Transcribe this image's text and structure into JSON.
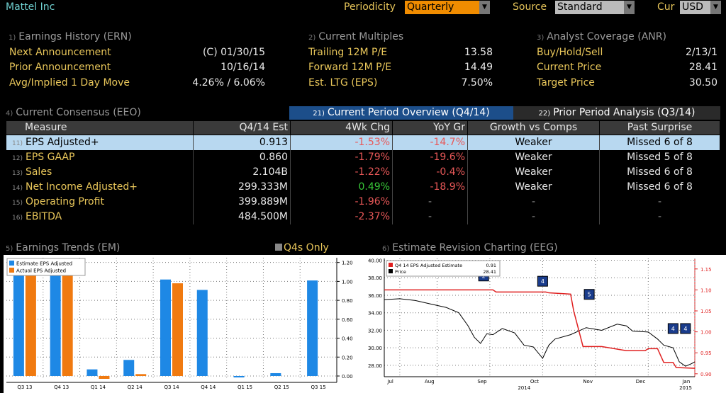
{
  "header": {
    "company": "Mattel Inc",
    "periodicity_label": "Periodicity",
    "periodicity_value": "Quarterly",
    "source_label": "Source",
    "source_value": "Standard",
    "cur_label": "Cur",
    "cur_value": "USD"
  },
  "earnings_history": {
    "num": "1)",
    "title": "Earnings History (ERN)",
    "rows": [
      {
        "label": "Next Announcement",
        "value": "(C)  01/30/15"
      },
      {
        "label": "Prior Announcement",
        "value": "10/16/14"
      },
      {
        "label": "Avg/Implied 1 Day Move",
        "value": "4.26% / 6.06%"
      }
    ]
  },
  "current_multiples": {
    "num": "2)",
    "title": "Current Multiples",
    "rows": [
      {
        "label": "Trailing 12M P/E",
        "value": "13.58"
      },
      {
        "label": "Forward 12M P/E",
        "value": "14.49"
      },
      {
        "label": "Est. LTG (EPS)",
        "value": "7.50%"
      }
    ]
  },
  "analyst_coverage": {
    "num": "3)",
    "title": "Analyst Coverage (ANR)",
    "rows": [
      {
        "label": "Buy/Hold/Sell",
        "value": "2/13/1"
      },
      {
        "label": "Current Price",
        "value": "28.41"
      },
      {
        "label": "Target Price",
        "value": "30.50"
      }
    ]
  },
  "consensus": {
    "num": "4)",
    "title": "Current Consensus (EEO)",
    "tab1_num": "21)",
    "tab1": "Current Period Overview (Q4/14)",
    "tab2_num": "22)",
    "tab2": "Prior Period Analysis (Q3/14)",
    "columns": [
      "Measure",
      "Q4/14 Est",
      "4Wk Chg",
      "YoY Gr",
      "Growth vs Comps",
      "Past Surprise"
    ],
    "rows": [
      {
        "num": "11)",
        "measure": "EPS Adjusted+",
        "est": "0.913",
        "chg": "-1.53%",
        "yoy": "-14.7%",
        "growth": "Weaker",
        "surprise": "Missed 6 of 8"
      },
      {
        "num": "12)",
        "measure": "EPS GAAP",
        "est": "0.860",
        "chg": "-1.79%",
        "yoy": "-19.6%",
        "growth": "Weaker",
        "surprise": "Missed 5 of 8"
      },
      {
        "num": "13)",
        "measure": "Sales",
        "est": "2.104B",
        "chg": "-1.22%",
        "yoy": "-0.4%",
        "growth": "Weaker",
        "surprise": "Missed 6 of 8"
      },
      {
        "num": "14)",
        "measure": "Net Income Adjusted+",
        "est": "299.333M",
        "chg": "0.49%",
        "yoy": "-18.9%",
        "growth": "Weaker",
        "surprise": "Missed 6 of 8"
      },
      {
        "num": "15)",
        "measure": "Operating Profit",
        "est": "399.889M",
        "chg": "-1.96%",
        "yoy": "-",
        "growth": "-",
        "surprise": "-"
      },
      {
        "num": "16)",
        "measure": "EBITDA",
        "est": "484.500M",
        "chg": "-2.37%",
        "yoy": "-",
        "growth": "-",
        "surprise": "-"
      }
    ]
  },
  "trends": {
    "num": "5)",
    "title": "Earnings Trends (EM)",
    "q4s_only": "Q4s Only"
  },
  "revision": {
    "num": "6)",
    "title": "Estimate Revision Charting (EEG)"
  },
  "colors": {
    "estimate": "#1e88e5",
    "actual": "#f07a10",
    "revision_line": "#e02020",
    "price_line": "#000000"
  },
  "chart_data": [
    {
      "type": "bar",
      "title": "Earnings Trends (EM)",
      "categories": [
        "Q3 13",
        "Q4 13",
        "Q1 14",
        "Q2 14",
        "Q3 14",
        "Q4 14",
        "Q1 15",
        "Q2 15",
        "Q3 15"
      ],
      "series": [
        {
          "name": "Estimate EPS Adjusted",
          "values": [
            1.07,
            1.07,
            0.07,
            0.17,
            1.02,
            0.91,
            -0.01,
            0.03,
            1.01
          ]
        },
        {
          "name": "Actual EPS Adjusted",
          "values": [
            1.07,
            1.07,
            -0.03,
            0.02,
            0.98,
            null,
            null,
            null,
            null
          ]
        }
      ],
      "ylim": [
        -0.03,
        1.25
      ],
      "yticks": [
        "1.20",
        "1.00",
        "0.80",
        "0.60",
        "0.40",
        "0.20",
        "0.00"
      ],
      "ytick_values": [
        1.2,
        1.0,
        0.8,
        0.6,
        0.4,
        0.2,
        0.0
      ]
    },
    {
      "type": "line",
      "title": "Estimate Revision Charting (EEG)",
      "x_labels": [
        "Jul",
        "Aug",
        "Sep",
        "Oct",
        "Nov",
        "Dec",
        "Jan"
      ],
      "x_sublabels": [
        "2014",
        "2015"
      ],
      "left_axis": {
        "ticks": [
          "40.00",
          "38.00",
          "36.00",
          "34.00",
          "32.00",
          "30.00",
          "28.00"
        ],
        "values": [
          40,
          38,
          36,
          34,
          32,
          30,
          28
        ],
        "ylim": [
          26.7,
          40.2
        ]
      },
      "right_axis": {
        "ticks": [
          "1.15",
          "1.10",
          "1.05",
          "1.00",
          "0.95",
          "0.90"
        ],
        "values": [
          1.15,
          1.1,
          1.05,
          1.0,
          0.95,
          0.9
        ],
        "ylim": [
          0.893,
          1.175
        ]
      },
      "legend": [
        {
          "name": "Q4 14 EPS Adjusted Estimate",
          "value": "0.91"
        },
        {
          "name": "Price",
          "value": "28.41"
        }
      ],
      "series": [
        {
          "name": "Q4 14 EPS Adjusted Estimate",
          "axis": "right",
          "x": [
            0,
            0.35,
            0.36,
            0.52,
            0.53,
            0.6,
            0.61,
            0.64,
            0.7,
            0.78,
            0.84,
            0.85,
            0.86,
            0.87,
            0.88,
            0.9,
            0.93,
            0.94,
            1.0
          ],
          "values": [
            1.1,
            1.1,
            1.095,
            1.095,
            1.093,
            1.09,
            1.05,
            0.965,
            0.965,
            0.955,
            0.955,
            0.96,
            0.96,
            0.96,
            0.96,
            0.927,
            0.927,
            0.915,
            0.913
          ]
        },
        {
          "name": "Price",
          "axis": "left",
          "x": [
            0,
            0.05,
            0.1,
            0.15,
            0.2,
            0.24,
            0.27,
            0.29,
            0.31,
            0.33,
            0.35,
            0.38,
            0.42,
            0.45,
            0.48,
            0.51,
            0.53,
            0.55,
            0.6,
            0.65,
            0.7,
            0.75,
            0.78,
            0.8,
            0.85,
            0.88,
            0.9,
            0.93,
            0.95,
            0.97,
            0.99,
            1.0
          ],
          "values": [
            35.5,
            35.6,
            35.4,
            35.0,
            34.6,
            34.0,
            32.5,
            31.2,
            30.5,
            31.6,
            31.5,
            32.2,
            31.7,
            30.3,
            30.1,
            28.8,
            30.3,
            31.0,
            31.5,
            32.3,
            32.0,
            32.7,
            32.5,
            31.9,
            31.8,
            31.0,
            30.3,
            30.0,
            28.4,
            27.9,
            28.2,
            28.4
          ]
        }
      ],
      "markers": [
        {
          "label": "2",
          "x": 0.32,
          "y": 38.2
        },
        {
          "label": "4",
          "x": 0.51,
          "y": 37.6
        },
        {
          "label": "5",
          "x": 0.66,
          "y": 36.1
        },
        {
          "label": "4",
          "x": 0.93,
          "y": 32.2
        },
        {
          "label": "4",
          "x": 0.97,
          "y": 32.2
        }
      ]
    }
  ]
}
